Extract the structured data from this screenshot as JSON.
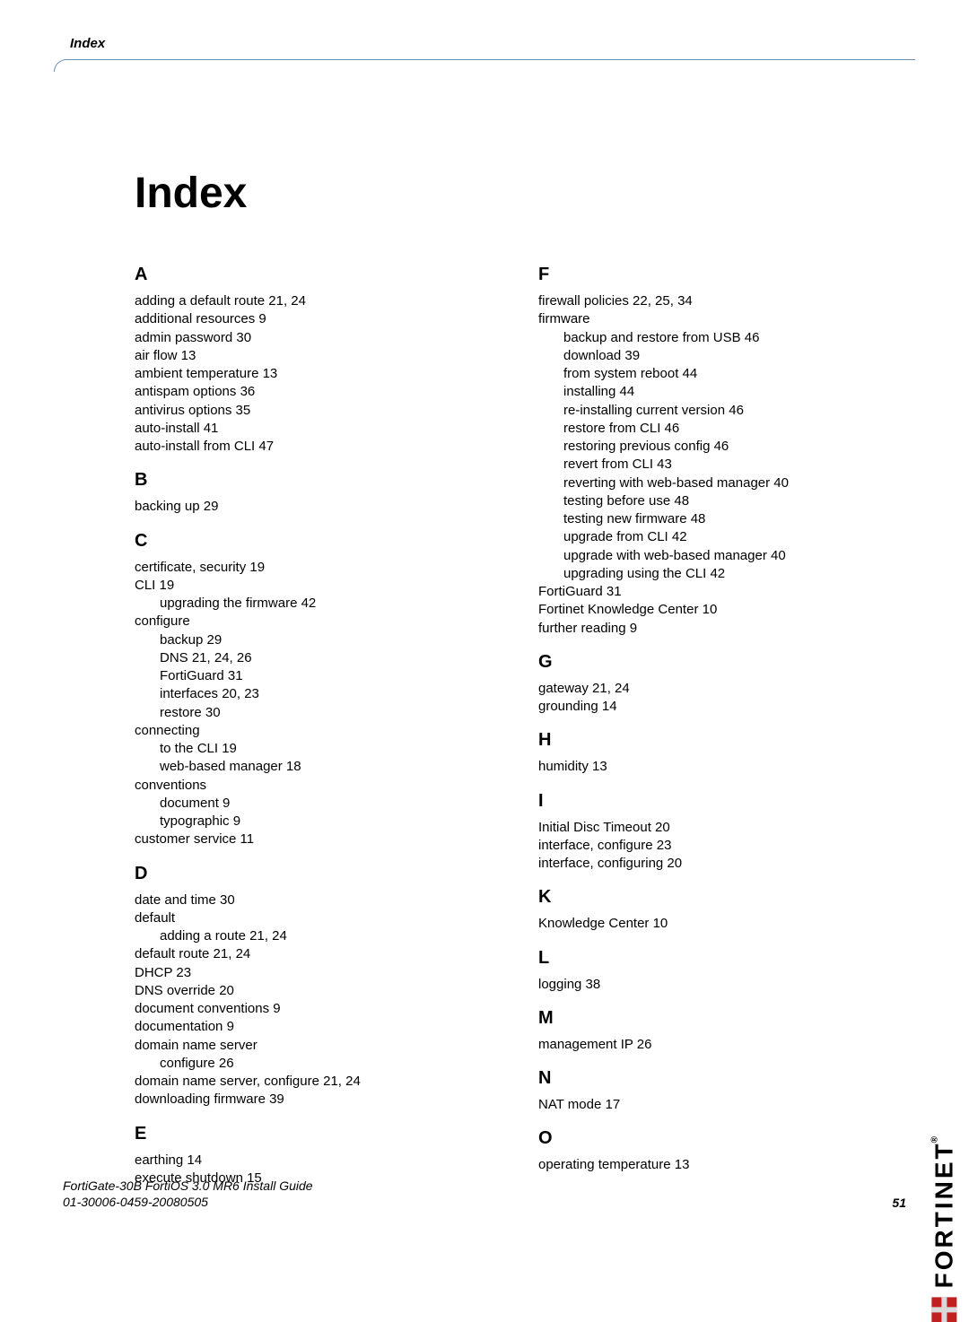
{
  "header": {
    "section": "Index"
  },
  "title": "Index",
  "footer": {
    "line1": "FortiGate-30B FortiOS 3.0 MR6 Install Guide",
    "line2": "01-30006-0459-20080505",
    "pageNumber": "51"
  },
  "logo": {
    "text": "FORTINET",
    "registered": "®"
  },
  "index": {
    "left": [
      {
        "letter": "A",
        "entries": [
          {
            "t": "adding a default route 21, 24"
          },
          {
            "t": "additional resources 9"
          },
          {
            "t": "admin password 30"
          },
          {
            "t": "air flow 13"
          },
          {
            "t": "ambient temperature 13"
          },
          {
            "t": "antispam options 36"
          },
          {
            "t": "antivirus options 35"
          },
          {
            "t": "auto-install 41"
          },
          {
            "t": "auto-install from CLI 47"
          }
        ]
      },
      {
        "letter": "B",
        "entries": [
          {
            "t": "backing up 29"
          }
        ]
      },
      {
        "letter": "C",
        "entries": [
          {
            "t": "certificate, security 19"
          },
          {
            "t": "CLI 19"
          },
          {
            "t": "upgrading the firmware 42",
            "sub": true
          },
          {
            "t": "configure"
          },
          {
            "t": "backup 29",
            "sub": true
          },
          {
            "t": "DNS 21, 24, 26",
            "sub": true
          },
          {
            "t": "FortiGuard 31",
            "sub": true
          },
          {
            "t": "interfaces 20, 23",
            "sub": true
          },
          {
            "t": "restore 30",
            "sub": true
          },
          {
            "t": "connecting"
          },
          {
            "t": "to the CLI 19",
            "sub": true
          },
          {
            "t": "web-based manager 18",
            "sub": true
          },
          {
            "t": "conventions"
          },
          {
            "t": "document 9",
            "sub": true
          },
          {
            "t": "typographic 9",
            "sub": true
          },
          {
            "t": "customer service 11"
          }
        ]
      },
      {
        "letter": "D",
        "entries": [
          {
            "t": "date and time 30"
          },
          {
            "t": "default"
          },
          {
            "t": "adding a route 21, 24",
            "sub": true
          },
          {
            "t": "default route 21, 24"
          },
          {
            "t": "DHCP 23"
          },
          {
            "t": "DNS override 20"
          },
          {
            "t": "document conventions 9"
          },
          {
            "t": "documentation 9"
          },
          {
            "t": "domain name server"
          },
          {
            "t": "configure 26",
            "sub": true
          },
          {
            "t": "domain name server, configure 21, 24"
          },
          {
            "t": "downloading firmware 39"
          }
        ]
      },
      {
        "letter": "E",
        "entries": [
          {
            "t": "earthing 14"
          },
          {
            "t": "execute shutdown 15"
          }
        ]
      }
    ],
    "right": [
      {
        "letter": "F",
        "entries": [
          {
            "t": "firewall policies 22, 25, 34"
          },
          {
            "t": "firmware"
          },
          {
            "t": "backup and restore from USB 46",
            "sub": true
          },
          {
            "t": "download 39",
            "sub": true
          },
          {
            "t": "from system reboot 44",
            "sub": true
          },
          {
            "t": "installing 44",
            "sub": true
          },
          {
            "t": "re-installing current version 46",
            "sub": true
          },
          {
            "t": "restore from CLI 46",
            "sub": true
          },
          {
            "t": "restoring previous config 46",
            "sub": true
          },
          {
            "t": "revert from CLI 43",
            "sub": true
          },
          {
            "t": "reverting with web-based manager 40",
            "sub": true
          },
          {
            "t": "testing before use 48",
            "sub": true
          },
          {
            "t": "testing new firmware 48",
            "sub": true
          },
          {
            "t": "upgrade from CLI 42",
            "sub": true
          },
          {
            "t": "upgrade with web-based manager 40",
            "sub": true
          },
          {
            "t": "upgrading using the CLI 42",
            "sub": true
          },
          {
            "t": "FortiGuard 31"
          },
          {
            "t": "Fortinet Knowledge Center 10"
          },
          {
            "t": "further reading 9"
          }
        ]
      },
      {
        "letter": "G",
        "entries": [
          {
            "t": "gateway 21, 24"
          },
          {
            "t": "grounding 14"
          }
        ]
      },
      {
        "letter": "H",
        "entries": [
          {
            "t": "humidity 13"
          }
        ]
      },
      {
        "letter": "I",
        "entries": [
          {
            "t": "Initial Disc Timeout 20"
          },
          {
            "t": "interface, configure 23"
          },
          {
            "t": "interface, configuring 20"
          }
        ]
      },
      {
        "letter": "K",
        "entries": [
          {
            "t": "Knowledge Center 10"
          }
        ]
      },
      {
        "letter": "L",
        "entries": [
          {
            "t": "logging 38"
          }
        ]
      },
      {
        "letter": "M",
        "entries": [
          {
            "t": "management IP 26"
          }
        ]
      },
      {
        "letter": "N",
        "entries": [
          {
            "t": "NAT mode 17"
          }
        ]
      },
      {
        "letter": "O",
        "entries": [
          {
            "t": "operating temperature 13"
          }
        ]
      }
    ]
  }
}
